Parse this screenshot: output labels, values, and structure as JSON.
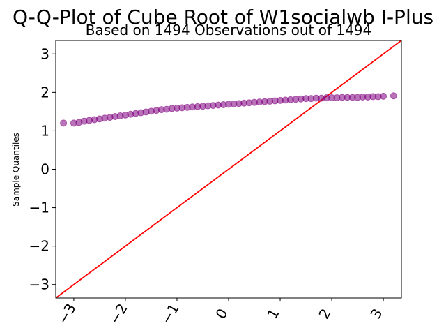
{
  "chart_data": {
    "type": "scatter",
    "title": "Q-Q-Plot of Cube Root of W1socialwb I-Plus",
    "subtitle": "Based on 1494 Observations out of 1494",
    "xlabel": "",
    "ylabel": "Sample Quantiles",
    "xlim": [
      -3.35,
      3.35
    ],
    "ylim": [
      -3.35,
      3.35
    ],
    "x_ticks": [
      -3,
      -2,
      -1,
      0,
      1,
      2,
      3
    ],
    "x_tick_labels": [
      "−3",
      "−2",
      "−1",
      "0",
      "1",
      "2",
      "3"
    ],
    "y_ticks": [
      -3,
      -2,
      -1,
      0,
      1,
      2,
      3
    ],
    "y_tick_labels": [
      "−3",
      "−2",
      "−1",
      "0",
      "1",
      "2",
      "3"
    ],
    "grid": false,
    "colors": {
      "points": "#800080",
      "reference_line": "#ff0000"
    },
    "reference_line": {
      "x": [
        -3.35,
        3.35
      ],
      "y": [
        -3.35,
        3.35
      ]
    },
    "series": [
      {
        "x": [
          -3.2,
          -3.0,
          -2.9,
          -2.8,
          -2.7,
          -2.6,
          -2.5,
          -2.4,
          -2.3,
          -2.2,
          -2.1,
          -2.0,
          -1.9,
          -1.8,
          -1.7,
          -1.6,
          -1.5,
          -1.4,
          -1.3,
          -1.2,
          -1.1,
          -1.0,
          -0.9,
          -0.8,
          -0.7,
          -0.6,
          -0.5,
          -0.4,
          -0.3,
          -0.2,
          -0.1,
          0.0,
          0.1,
          0.2,
          0.3,
          0.4,
          0.5,
          0.6,
          0.7,
          0.8,
          0.9,
          1.0,
          1.1,
          1.2,
          1.3,
          1.4,
          1.5,
          1.6,
          1.7,
          1.8,
          1.9,
          2.0,
          2.1,
          2.2,
          2.3,
          2.4,
          2.5,
          2.6,
          2.7,
          2.8,
          2.9,
          3.0,
          3.2
        ],
        "y": [
          1.2,
          1.2,
          1.22,
          1.25,
          1.27,
          1.29,
          1.31,
          1.33,
          1.35,
          1.37,
          1.39,
          1.41,
          1.43,
          1.45,
          1.47,
          1.49,
          1.51,
          1.53,
          1.55,
          1.56,
          1.58,
          1.59,
          1.6,
          1.61,
          1.62,
          1.63,
          1.64,
          1.65,
          1.66,
          1.67,
          1.68,
          1.69,
          1.7,
          1.71,
          1.72,
          1.73,
          1.74,
          1.75,
          1.76,
          1.77,
          1.78,
          1.79,
          1.8,
          1.81,
          1.82,
          1.83,
          1.84,
          1.84,
          1.85,
          1.85,
          1.86,
          1.86,
          1.86,
          1.87,
          1.87,
          1.87,
          1.87,
          1.88,
          1.88,
          1.89,
          1.89,
          1.9,
          1.91
        ]
      }
    ]
  }
}
